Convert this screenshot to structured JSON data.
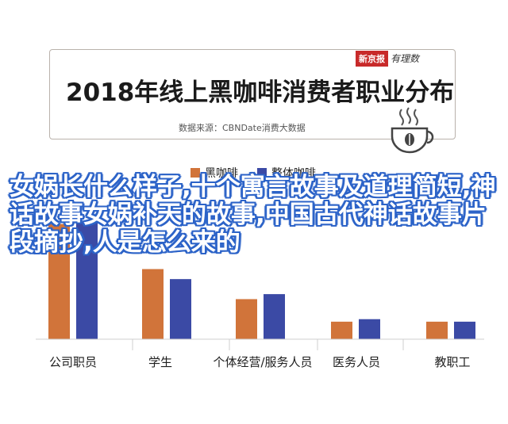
{
  "header": {
    "title": "2018年线上黑咖啡消费者职业分布",
    "source": "数据来源：CBNDate消费大数据",
    "brand_tag": "新京报",
    "brand_script": "有理数"
  },
  "overlay_text": "女娲长什么样子,十个寓言故事及道理简短,神话故事女娲补天的故事,中国古代神话故事片段摘抄,人是怎么来的",
  "colors": {
    "black_coffee": "#d1743a",
    "whole_coffee": "#3b4aa5"
  },
  "chart_data": {
    "type": "bar",
    "categories": [
      "公司职员",
      "学生",
      "个体经营/服务人员",
      "医务人员",
      "教职工"
    ],
    "series": [
      {
        "name": "黑咖啡",
        "values": [
          46,
          28,
          16,
          7,
          7
        ]
      },
      {
        "name": "整体咖啡",
        "values": [
          47,
          24,
          18,
          8,
          7
        ]
      }
    ],
    "ylim": [
      0,
      50
    ]
  }
}
